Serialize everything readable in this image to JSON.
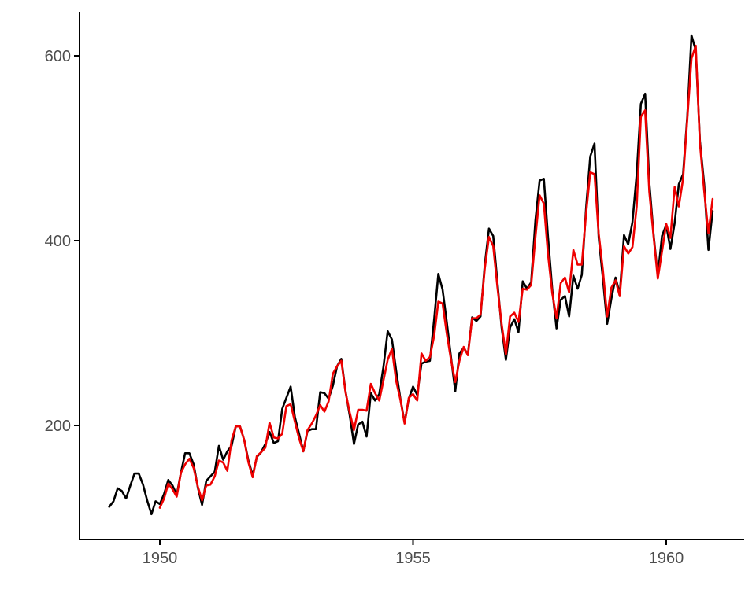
{
  "chart_data": {
    "type": "line",
    "title": "",
    "xlabel": "",
    "ylabel": "",
    "xlim": [
      1948.4,
      1961.5
    ],
    "ylim": [
      84,
      647
    ],
    "grid": false,
    "legend": "none",
    "x_ticks": [
      {
        "value": 1950,
        "label": "1950"
      },
      {
        "value": 1955,
        "label": "1955"
      },
      {
        "value": 1960,
        "label": "1960"
      }
    ],
    "y_ticks": [
      {
        "value": 200,
        "label": "200"
      },
      {
        "value": 400,
        "label": "400"
      },
      {
        "value": 600,
        "label": "600"
      }
    ],
    "series": [
      {
        "color": "#000000",
        "start": 1949.0,
        "step": 0.08333,
        "values": [
          112,
          118,
          132,
          129,
          121,
          135,
          148,
          148,
          136,
          119,
          104,
          118,
          115,
          126,
          141,
          135,
          125,
          149,
          170,
          170,
          158,
          133,
          114,
          140,
          145,
          150,
          178,
          163,
          172,
          178,
          199,
          199,
          184,
          162,
          146,
          166,
          171,
          180,
          193,
          181,
          183,
          218,
          230,
          242,
          209,
          191,
          172,
          194,
          196,
          196,
          236,
          235,
          229,
          243,
          264,
          272,
          237,
          211,
          180,
          201,
          204,
          188,
          235,
          227,
          234,
          264,
          302,
          293,
          259,
          229,
          203,
          229,
          242,
          233,
          267,
          269,
          270,
          315,
          364,
          347,
          312,
          274,
          237,
          278,
          284,
          277,
          317,
          313,
          318,
          374,
          413,
          405,
          355,
          306,
          271,
          306,
          315,
          301,
          356,
          348,
          355,
          422,
          465,
          467,
          404,
          347,
          305,
          336,
          340,
          318,
          362,
          348,
          363,
          435,
          491,
          505,
          404,
          359,
          310,
          337,
          360,
          342,
          406,
          396,
          420,
          472,
          548,
          559,
          463,
          407,
          362,
          405,
          417,
          391,
          419,
          461,
          472,
          535,
          622,
          606,
          508,
          461,
          390,
          432
        ]
      },
      {
        "color": "#ee0000",
        "start": 1950.0,
        "step": 0.08333,
        "values": [
          111,
          121,
          137,
          131,
          123,
          149,
          158,
          164,
          154,
          134,
          119,
          135,
          136,
          145,
          162,
          160,
          151,
          184,
          199,
          199,
          184,
          160,
          144,
          167,
          171,
          176,
          203,
          187,
          186,
          191,
          221,
          223,
          204,
          186,
          172,
          195,
          202,
          211,
          222,
          215,
          226,
          256,
          264,
          270,
          236,
          214,
          195,
          217,
          217,
          216,
          245,
          235,
          227,
          249,
          271,
          283,
          248,
          228,
          202,
          230,
          234,
          227,
          278,
          270,
          274,
          297,
          334,
          332,
          299,
          271,
          247,
          270,
          285,
          276,
          316,
          316,
          320,
          370,
          404,
          394,
          350,
          310,
          277,
          318,
          322,
          312,
          348,
          347,
          352,
          404,
          449,
          440,
          385,
          343,
          316,
          354,
          360,
          344,
          390,
          374,
          374,
          429,
          474,
          472,
          408,
          368,
          318,
          349,
          357,
          340,
          394,
          386,
          393,
          437,
          534,
          541,
          453,
          405,
          359,
          388,
          418,
          403,
          458,
          437,
          467,
          532,
          597,
          611,
          505,
          454,
          408,
          445
        ]
      }
    ]
  }
}
